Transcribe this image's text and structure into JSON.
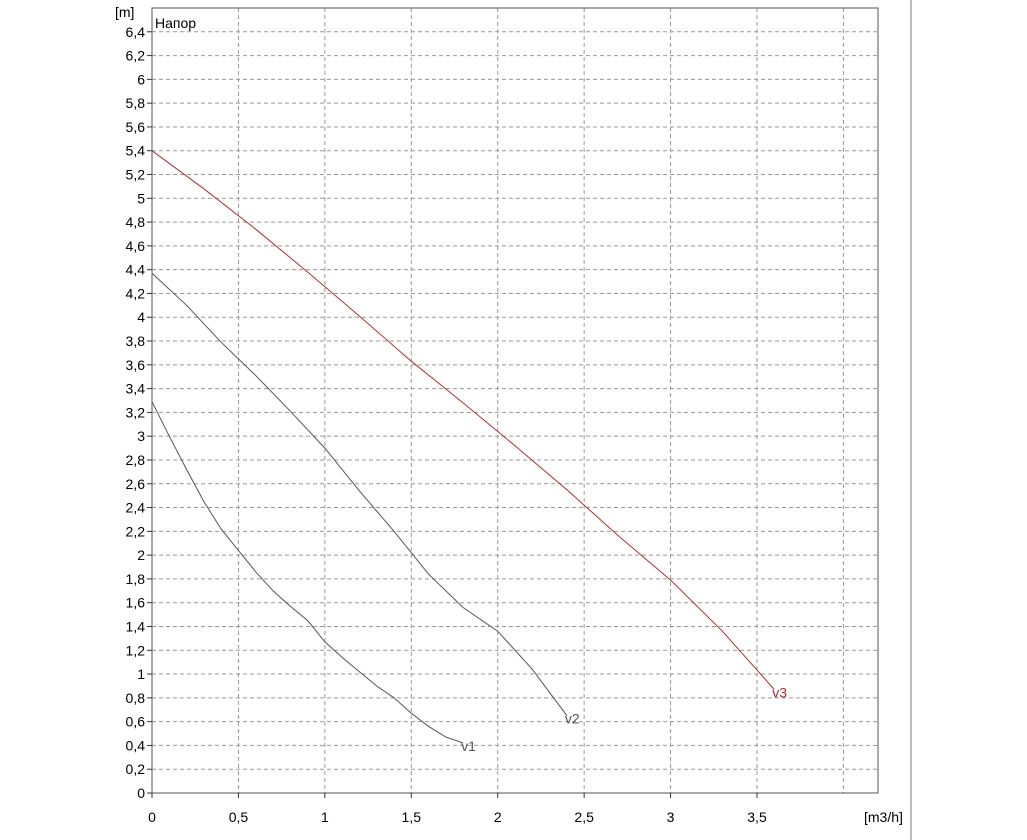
{
  "chart_data": {
    "type": "line",
    "title": "Напор",
    "ylabel": "[m]",
    "xlabel": "[m3/h]",
    "xlim": [
      0,
      4.2
    ],
    "ylim": [
      0,
      6.6
    ],
    "grid": true,
    "x_ticks": [
      0,
      0.5,
      1,
      1.5,
      2,
      2.5,
      3,
      3.5
    ],
    "x_tick_labels": [
      "0",
      "0,5",
      "1",
      "1,5",
      "2",
      "2,5",
      "3",
      "3,5"
    ],
    "y_ticks": [
      0,
      0.2,
      0.4,
      0.6,
      0.8,
      1,
      1.2,
      1.4,
      1.6,
      1.8,
      2,
      2.2,
      2.4,
      2.6,
      2.8,
      3,
      3.2,
      3.4,
      3.6,
      3.8,
      4,
      4.2,
      4.4,
      4.6,
      4.8,
      5,
      5.2,
      5.4,
      5.6,
      5.8,
      6,
      6.2,
      6.4
    ],
    "y_tick_labels": [
      "0",
      "0,2",
      "0,4",
      "0,6",
      "0,8",
      "1",
      "1,2",
      "1,4",
      "1,6",
      "1,8",
      "2",
      "2,2",
      "2,4",
      "2,6",
      "2,8",
      "3",
      "3,2",
      "3,4",
      "3,6",
      "3,8",
      "4",
      "4,2",
      "4,4",
      "4,6",
      "4,8",
      "5",
      "5,2",
      "5,4",
      "5,6",
      "5,8",
      "6",
      "6,2",
      "6,4"
    ],
    "series": [
      {
        "name": "v1",
        "color": "#555555",
        "x": [
          0,
          0.1,
          0.2,
          0.3,
          0.4,
          0.5,
          0.6,
          0.7,
          0.8,
          0.9,
          1.0,
          1.1,
          1.2,
          1.3,
          1.4,
          1.5,
          1.6,
          1.7,
          1.8
        ],
        "y": [
          3.29,
          3.0,
          2.72,
          2.45,
          2.22,
          2.04,
          1.86,
          1.7,
          1.57,
          1.45,
          1.27,
          1.14,
          1.02,
          0.9,
          0.8,
          0.67,
          0.56,
          0.47,
          0.42
        ]
      },
      {
        "name": "v2",
        "color": "#555555",
        "x": [
          0,
          0.2,
          0.4,
          0.6,
          0.8,
          1.0,
          1.2,
          1.4,
          1.6,
          1.8,
          2.0,
          2.2,
          2.4
        ],
        "y": [
          4.37,
          4.1,
          3.79,
          3.51,
          3.21,
          2.9,
          2.54,
          2.2,
          1.84,
          1.56,
          1.36,
          1.04,
          0.65
        ]
      },
      {
        "name": "v3",
        "color": "#b03030",
        "x": [
          0,
          0.3,
          0.6,
          0.9,
          1.2,
          1.5,
          1.8,
          2.1,
          2.4,
          2.7,
          3.0,
          3.3,
          3.6
        ],
        "y": [
          5.4,
          5.08,
          4.74,
          4.38,
          4.01,
          3.63,
          3.28,
          2.92,
          2.55,
          2.16,
          1.79,
          1.36,
          0.87
        ]
      }
    ]
  }
}
